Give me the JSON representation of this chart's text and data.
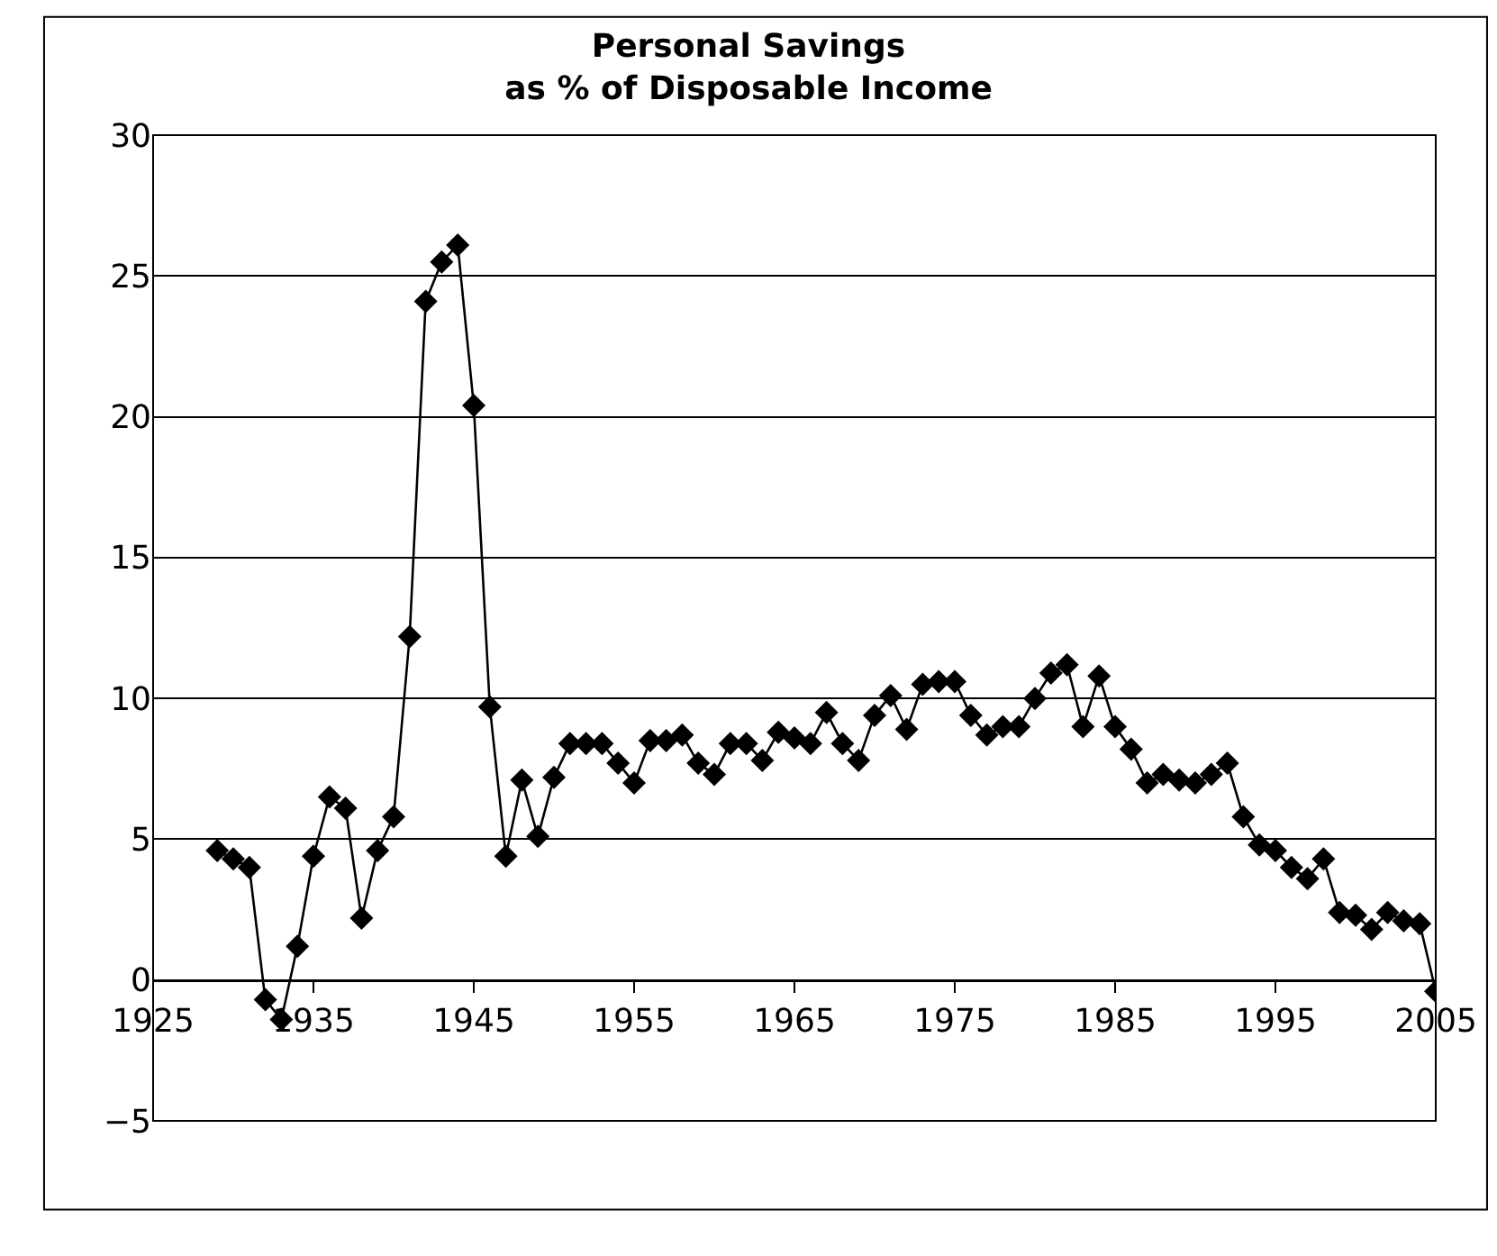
{
  "chart_data": {
    "type": "line",
    "title": "Personal Savings\nas % of Disposable Income",
    "x": [
      1929,
      1930,
      1931,
      1932,
      1933,
      1934,
      1935,
      1936,
      1937,
      1938,
      1939,
      1940,
      1941,
      1942,
      1943,
      1944,
      1945,
      1946,
      1947,
      1948,
      1949,
      1950,
      1951,
      1952,
      1953,
      1954,
      1955,
      1956,
      1957,
      1958,
      1959,
      1960,
      1961,
      1962,
      1963,
      1964,
      1965,
      1966,
      1967,
      1968,
      1969,
      1970,
      1971,
      1972,
      1973,
      1974,
      1975,
      1976,
      1977,
      1978,
      1979,
      1980,
      1981,
      1982,
      1983,
      1984,
      1985,
      1986,
      1987,
      1988,
      1989,
      1990,
      1991,
      1992,
      1993,
      1994,
      1995,
      1996,
      1997,
      1998,
      1999,
      2000,
      2001,
      2002,
      2003,
      2004,
      2005
    ],
    "series": [
      {
        "color": "#000000",
        "values": [
          4.6,
          4.3,
          4.0,
          -0.7,
          -1.4,
          1.2,
          4.4,
          6.5,
          6.1,
          2.2,
          4.6,
          5.8,
          12.2,
          24.1,
          25.5,
          26.1,
          20.4,
          9.7,
          4.4,
          7.1,
          5.1,
          7.2,
          8.4,
          8.4,
          8.4,
          7.7,
          7.0,
          8.5,
          8.5,
          8.7,
          7.7,
          7.3,
          8.4,
          8.4,
          7.8,
          8.8,
          8.6,
          8.4,
          9.5,
          8.4,
          7.8,
          9.4,
          10.1,
          8.9,
          10.5,
          10.6,
          10.6,
          9.4,
          8.7,
          9.0,
          9.0,
          10.0,
          10.9,
          11.2,
          9.0,
          10.8,
          9.0,
          8.2,
          7.0,
          7.3,
          7.1,
          7.0,
          7.3,
          7.7,
          5.8,
          4.8,
          4.6,
          4.0,
          3.6,
          4.3,
          2.4,
          2.3,
          1.8,
          2.4,
          2.1,
          2.0,
          -0.4
        ]
      }
    ],
    "xlim": [
      1925,
      2005
    ],
    "xticks": [
      1925,
      1935,
      1945,
      1955,
      1965,
      1975,
      1985,
      1995,
      2005
    ],
    "ylim": [
      -5,
      30
    ],
    "yticks": [
      {
        "value": -5,
        "label": "−5"
      },
      0,
      5,
      10,
      15,
      20,
      25,
      30
    ],
    "grid": "y",
    "marker": "diamond",
    "line_style": "solid"
  }
}
